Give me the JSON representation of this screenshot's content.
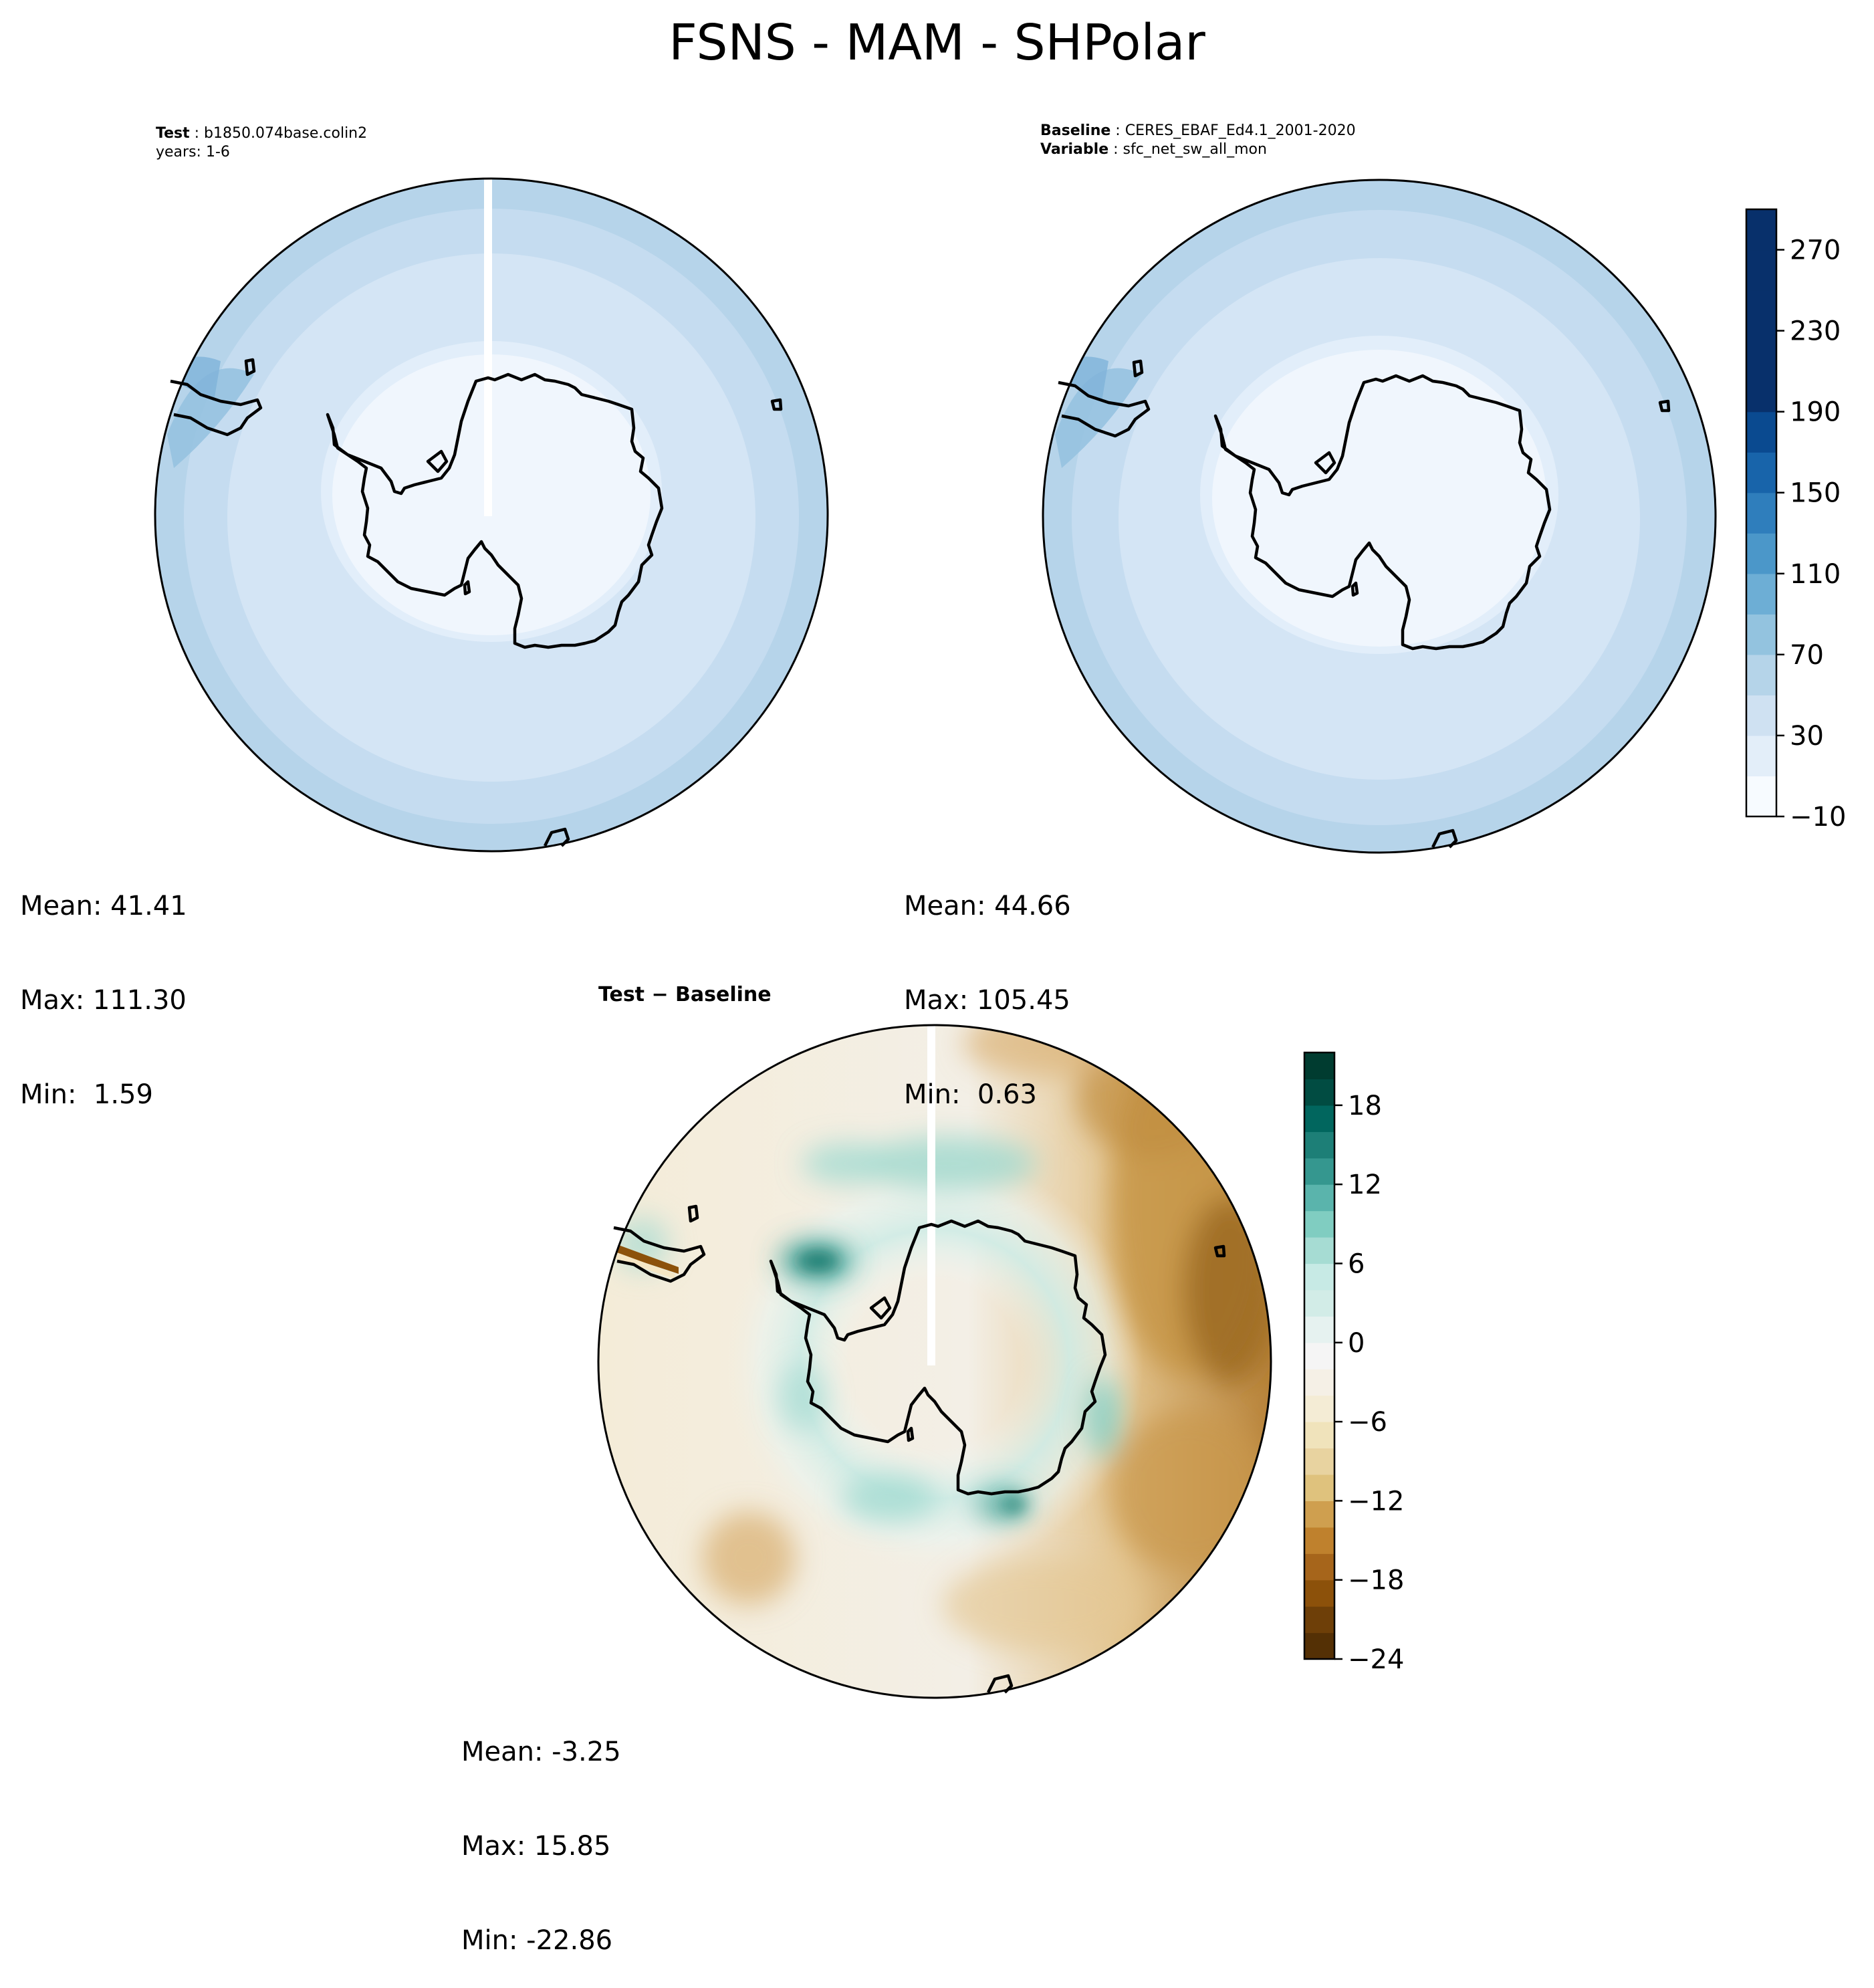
{
  "figure": {
    "title": "FSNS - MAM - SHPolar"
  },
  "panels": [
    {
      "id": "test",
      "header": [
        {
          "key": "Test",
          "value": "b1850.074base.colin2"
        },
        {
          "key": "",
          "value": "years: 1-6"
        }
      ],
      "stats": {
        "mean": "Mean: 41.41",
        "max": "Max: 111.30",
        "min": "Min:  1.59"
      }
    },
    {
      "id": "baseline",
      "header": [
        {
          "key": "Baseline",
          "value": "CERES_EBAF_Ed4.1_2001-2020"
        },
        {
          "key": "Variable",
          "value": "sfc_net_sw_all_mon"
        }
      ],
      "stats": {
        "mean": "Mean: 44.66",
        "max": "Max: 105.45",
        "min": "Min:  0.63"
      }
    },
    {
      "id": "difference",
      "title": "Test − Baseline",
      "stats": {
        "mean": "Mean: -3.25",
        "max": "Max: 15.85",
        "min": "Min: -22.86"
      }
    }
  ],
  "chart_data": [
    {
      "type": "heatmap",
      "name": "Test",
      "projection": "south-polar-stereographic",
      "stats": {
        "mean": 41.41,
        "max": 111.3,
        "min": 1.59
      },
      "colormap": "Blues",
      "field_description_rings": [
        {
          "colat_frac": [
            0.0,
            0.45
          ],
          "value": 5
        },
        {
          "colat_frac": [
            0.45,
            0.62
          ],
          "value": 25
        },
        {
          "colat_frac": [
            0.62,
            0.8
          ],
          "value": 45
        },
        {
          "colat_frac": [
            0.8,
            0.92
          ],
          "value": 65
        },
        {
          "colat_frac": [
            0.92,
            1.0
          ],
          "value": 85
        }
      ]
    },
    {
      "type": "heatmap",
      "name": "Baseline",
      "projection": "south-polar-stereographic",
      "stats": {
        "mean": 44.66,
        "max": 105.45,
        "min": 0.63
      },
      "colorbar": {
        "cmap": "Blues",
        "levels": [
          -10,
          10,
          30,
          50,
          70,
          90,
          110,
          130,
          150,
          170,
          190,
          210,
          230,
          250,
          270,
          290
        ],
        "ticks": [
          -10,
          30,
          70,
          110,
          150,
          190,
          230,
          270
        ],
        "tick_labels": [
          "−10",
          "30",
          "70",
          "110",
          "150",
          "190",
          "230",
          "270"
        ],
        "colors": [
          "#f7fbff",
          "#e3eef9",
          "#cfe1f2",
          "#b5d4e9",
          "#93c3df",
          "#6daed5",
          "#4b97c9",
          "#2f7ebc",
          "#1864aa",
          "#0a4a90",
          "#08306b",
          "#08306b",
          "#08306b",
          "#08306b",
          "#08306b"
        ]
      }
    },
    {
      "type": "heatmap",
      "name": "Test − Baseline",
      "projection": "south-polar-stereographic",
      "stats": {
        "mean": -3.25,
        "max": 15.85,
        "min": -22.86
      },
      "colorbar": {
        "cmap": "BrBG",
        "levels": [
          -24,
          -22,
          -20,
          -18,
          -16,
          -14,
          -12,
          -10,
          -8,
          -6,
          -4,
          -2,
          0,
          2,
          4,
          6,
          8,
          10,
          12,
          14,
          16,
          18,
          20,
          22
        ],
        "ticks": [
          -24,
          -18,
          -12,
          -6,
          0,
          6,
          12,
          18
        ],
        "tick_labels": [
          "−24",
          "−18",
          "−12",
          "−6",
          "0",
          "6",
          "12",
          "18"
        ],
        "colors": [
          "#543005",
          "#6e3f08",
          "#8c510a",
          "#a6651b",
          "#bf812d",
          "#cf9f4f",
          "#dfc27d",
          "#e8d3a0",
          "#f0e3bb",
          "#f4ecd5",
          "#f5f0e6",
          "#f5f5f5",
          "#e6f2f0",
          "#d2ece7",
          "#c7eae5",
          "#a6dcd3",
          "#80cdc1",
          "#5ab4ac",
          "#35978f",
          "#1d7f77",
          "#01665e",
          "#014c42",
          "#003c30"
        ]
      }
    }
  ]
}
